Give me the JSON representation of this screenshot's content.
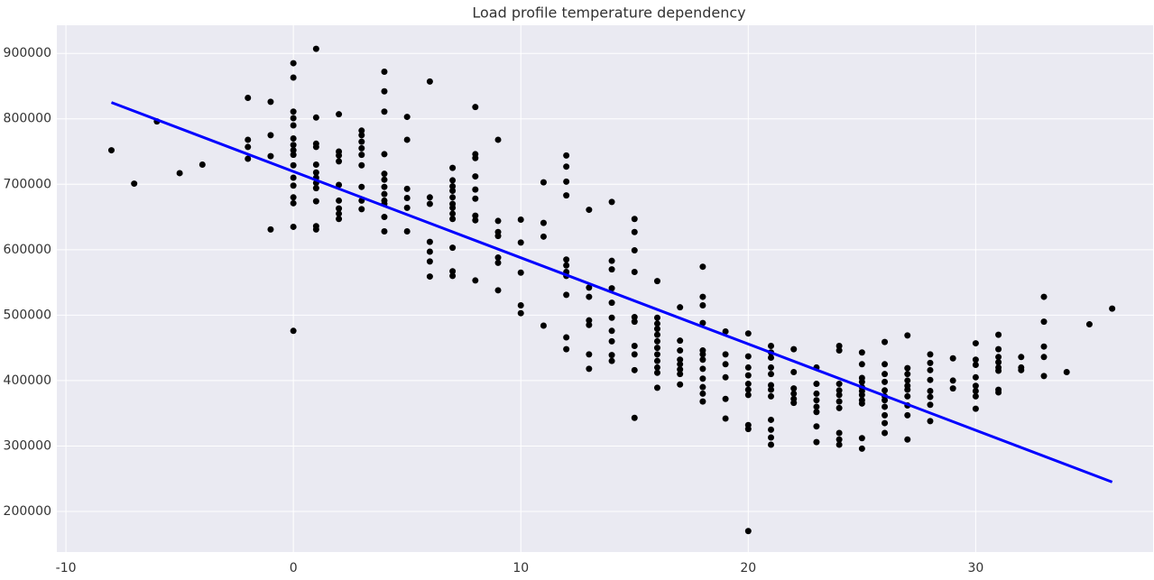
{
  "chart_data": {
    "type": "scatter",
    "title": "Load profile temperature dependency",
    "xlim": [
      -10.4,
      37.8
    ],
    "ylim": [
      138000,
      943000
    ],
    "xticks": [
      -10,
      0,
      10,
      20,
      30
    ],
    "yticks": [
      200000,
      300000,
      400000,
      500000,
      600000,
      700000,
      800000,
      900000
    ],
    "grid": true,
    "series": [
      {
        "type": "scatter",
        "color": "#000000",
        "x": [
          -8,
          -7,
          -6,
          -5,
          -4,
          -2,
          -2,
          -2,
          -2,
          -1,
          -1,
          -1,
          -1,
          0,
          0,
          0,
          0,
          0,
          0,
          0,
          0,
          0,
          0,
          0,
          0,
          0,
          0,
          0,
          0,
          1,
          1,
          1,
          1,
          1,
          1,
          1,
          1,
          1,
          1,
          1,
          1,
          2,
          2,
          2,
          2,
          2,
          2,
          2,
          2,
          2,
          3,
          3,
          3,
          3,
          3,
          3,
          3,
          3,
          3,
          4,
          4,
          4,
          4,
          4,
          4,
          4,
          4,
          4,
          4,
          4,
          4,
          5,
          5,
          5,
          5,
          5,
          5,
          6,
          6,
          6,
          6,
          6,
          6,
          6,
          7,
          7,
          7,
          7,
          7,
          7,
          7,
          7,
          7,
          7,
          7,
          7,
          8,
          8,
          8,
          8,
          8,
          8,
          8,
          8,
          8,
          9,
          9,
          9,
          9,
          9,
          9,
          9,
          10,
          10,
          10,
          10,
          10,
          11,
          11,
          11,
          11,
          12,
          12,
          12,
          12,
          12,
          12,
          12,
          12,
          12,
          12,
          12,
          13,
          13,
          13,
          13,
          13,
          13,
          13,
          14,
          14,
          14,
          14,
          14,
          14,
          14,
          14,
          14,
          14,
          15,
          15,
          15,
          15,
          15,
          15,
          15,
          15,
          15,
          15,
          16,
          16,
          16,
          16,
          16,
          16,
          16,
          16,
          16,
          16,
          16,
          16,
          17,
          17,
          17,
          17,
          17,
          17,
          17,
          17,
          18,
          18,
          18,
          18,
          18,
          18,
          18,
          18,
          18,
          18,
          18,
          18,
          19,
          19,
          19,
          19,
          19,
          19,
          20,
          20,
          20,
          20,
          20,
          20,
          20,
          20,
          20,
          20,
          21,
          21,
          21,
          21,
          21,
          21,
          21,
          21,
          21,
          21,
          21,
          21,
          22,
          22,
          22,
          22,
          22,
          22,
          23,
          23,
          23,
          23,
          23,
          23,
          23,
          23,
          24,
          24,
          24,
          24,
          24,
          24,
          24,
          24,
          24,
          24,
          25,
          25,
          25,
          25,
          25,
          25,
          25,
          25,
          25,
          25,
          25,
          26,
          26,
          26,
          26,
          26,
          26,
          26,
          26,
          26,
          26,
          26,
          27,
          27,
          27,
          27,
          27,
          27,
          27,
          27,
          27,
          27,
          28,
          28,
          28,
          28,
          28,
          28,
          28,
          28,
          29,
          29,
          29,
          30,
          30,
          30,
          30,
          30,
          30,
          30,
          30,
          31,
          31,
          31,
          31,
          31,
          31,
          31,
          31,
          32,
          32,
          32,
          33,
          33,
          33,
          33,
          33,
          34,
          35,
          36
        ],
        "values": [
          752000,
          701000,
          796000,
          717000,
          730000,
          832000,
          768000,
          757000,
          739000,
          826000,
          775000,
          743000,
          631000,
          885000,
          863000,
          811000,
          801000,
          790000,
          770000,
          760000,
          752000,
          745000,
          729000,
          710000,
          698000,
          680000,
          671000,
          635000,
          476000,
          907000,
          802000,
          762000,
          757000,
          730000,
          718000,
          710000,
          702000,
          694000,
          674000,
          636000,
          631000,
          807000,
          750000,
          744000,
          735000,
          699000,
          675000,
          663000,
          655000,
          647000,
          782000,
          775000,
          765000,
          755000,
          745000,
          729000,
          696000,
          675000,
          662000,
          872000,
          842000,
          811000,
          746000,
          716000,
          707000,
          696000,
          685000,
          675000,
          670000,
          650000,
          628000,
          803000,
          768000,
          693000,
          679000,
          664000,
          628000,
          857000,
          680000,
          670000,
          612000,
          597000,
          582000,
          559000,
          725000,
          706000,
          697000,
          690000,
          680000,
          670000,
          664000,
          655000,
          647000,
          603000,
          567000,
          560000,
          818000,
          746000,
          740000,
          712000,
          692000,
          678000,
          652000,
          645000,
          553000,
          768000,
          644000,
          627000,
          621000,
          588000,
          580000,
          538000,
          646000,
          611000,
          565000,
          515000,
          503000,
          703000,
          641000,
          620000,
          484000,
          744000,
          727000,
          704000,
          683000,
          585000,
          576000,
          566000,
          560000,
          531000,
          466000,
          448000,
          661000,
          542000,
          528000,
          492000,
          485000,
          440000,
          418000,
          673000,
          583000,
          570000,
          541000,
          519000,
          496000,
          476000,
          460000,
          439000,
          430000,
          647000,
          627000,
          599000,
          566000,
          497000,
          490000,
          453000,
          440000,
          416000,
          343000,
          552000,
          496000,
          487000,
          479000,
          470000,
          460000,
          450000,
          440000,
          430000,
          420000,
          412000,
          389000,
          512000,
          461000,
          446000,
          432000,
          425000,
          417000,
          410000,
          394000,
          574000,
          528000,
          515000,
          488000,
          446000,
          440000,
          432000,
          418000,
          403000,
          390000,
          380000,
          368000,
          475000,
          440000,
          425000,
          405000,
          372000,
          342000,
          472000,
          437000,
          420000,
          408000,
          395000,
          386000,
          378000,
          332000,
          326000,
          170000,
          453000,
          443000,
          435000,
          420000,
          410000,
          393000,
          386000,
          376000,
          340000,
          325000,
          313000,
          302000,
          448000,
          413000,
          388000,
          380000,
          372000,
          366000,
          420000,
          395000,
          380000,
          370000,
          360000,
          352000,
          330000,
          306000,
          453000,
          446000,
          395000,
          385000,
          378000,
          368000,
          358000,
          320000,
          310000,
          302000,
          443000,
          425000,
          404000,
          398000,
          390000,
          384000,
          378000,
          370000,
          365000,
          312000,
          296000,
          459000,
          425000,
          410000,
          398000,
          385000,
          376000,
          370000,
          360000,
          347000,
          335000,
          320000,
          469000,
          419000,
          410000,
          400000,
          392000,
          386000,
          376000,
          362000,
          347000,
          310000,
          440000,
          427000,
          416000,
          401000,
          384000,
          375000,
          363000,
          338000,
          434000,
          400000,
          388000,
          457000,
          432000,
          424000,
          405000,
          392000,
          384000,
          376000,
          357000,
          470000,
          448000,
          436000,
          428000,
          420000,
          415000,
          386000,
          382000,
          436000,
          420000,
          416000,
          528000,
          490000,
          452000,
          436000,
          407000,
          413000,
          486000,
          510000
        ]
      },
      {
        "type": "line",
        "color": "#0000ff",
        "x": [
          -8,
          36
        ],
        "values": [
          825000,
          245000
        ]
      }
    ]
  }
}
